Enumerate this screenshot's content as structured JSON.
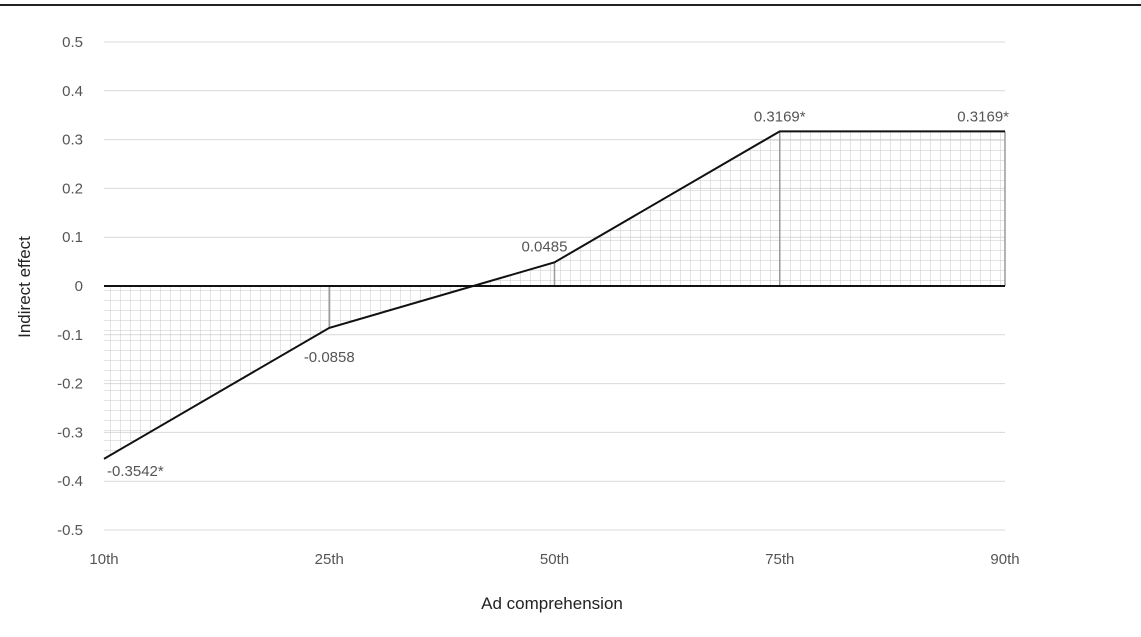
{
  "chart_data": {
    "type": "area",
    "title": "",
    "xlabel": "Ad comprehension",
    "ylabel": "Indirect effect",
    "categories": [
      "10th",
      "25th",
      "50th",
      "75th",
      "90th"
    ],
    "values": [
      -0.3542,
      -0.0858,
      0.0485,
      0.3169,
      0.3169
    ],
    "data_labels": [
      "-0.3542*",
      "-0.0858",
      "0.0485",
      "0.3169*",
      "0.3169*"
    ],
    "ylim": [
      -0.5,
      0.5
    ],
    "yticks": [
      0.5,
      0.4,
      0.3,
      0.2,
      0.1,
      0,
      -0.1,
      -0.2,
      -0.3,
      -0.4,
      -0.5
    ],
    "ytick_labels": [
      "0.5",
      "0.4",
      "0.3",
      "0.2",
      "0.1",
      "0",
      "-0.1",
      "-0.2",
      "-0.3",
      "-0.4",
      "-0.5"
    ],
    "grid": true,
    "legend": "none",
    "fill_pattern": "grid-hatch",
    "colors": {
      "line": "#111111",
      "gridline": "#d9d9d9",
      "hatch": "#c8c8c8",
      "zero_line": "#111111"
    }
  }
}
